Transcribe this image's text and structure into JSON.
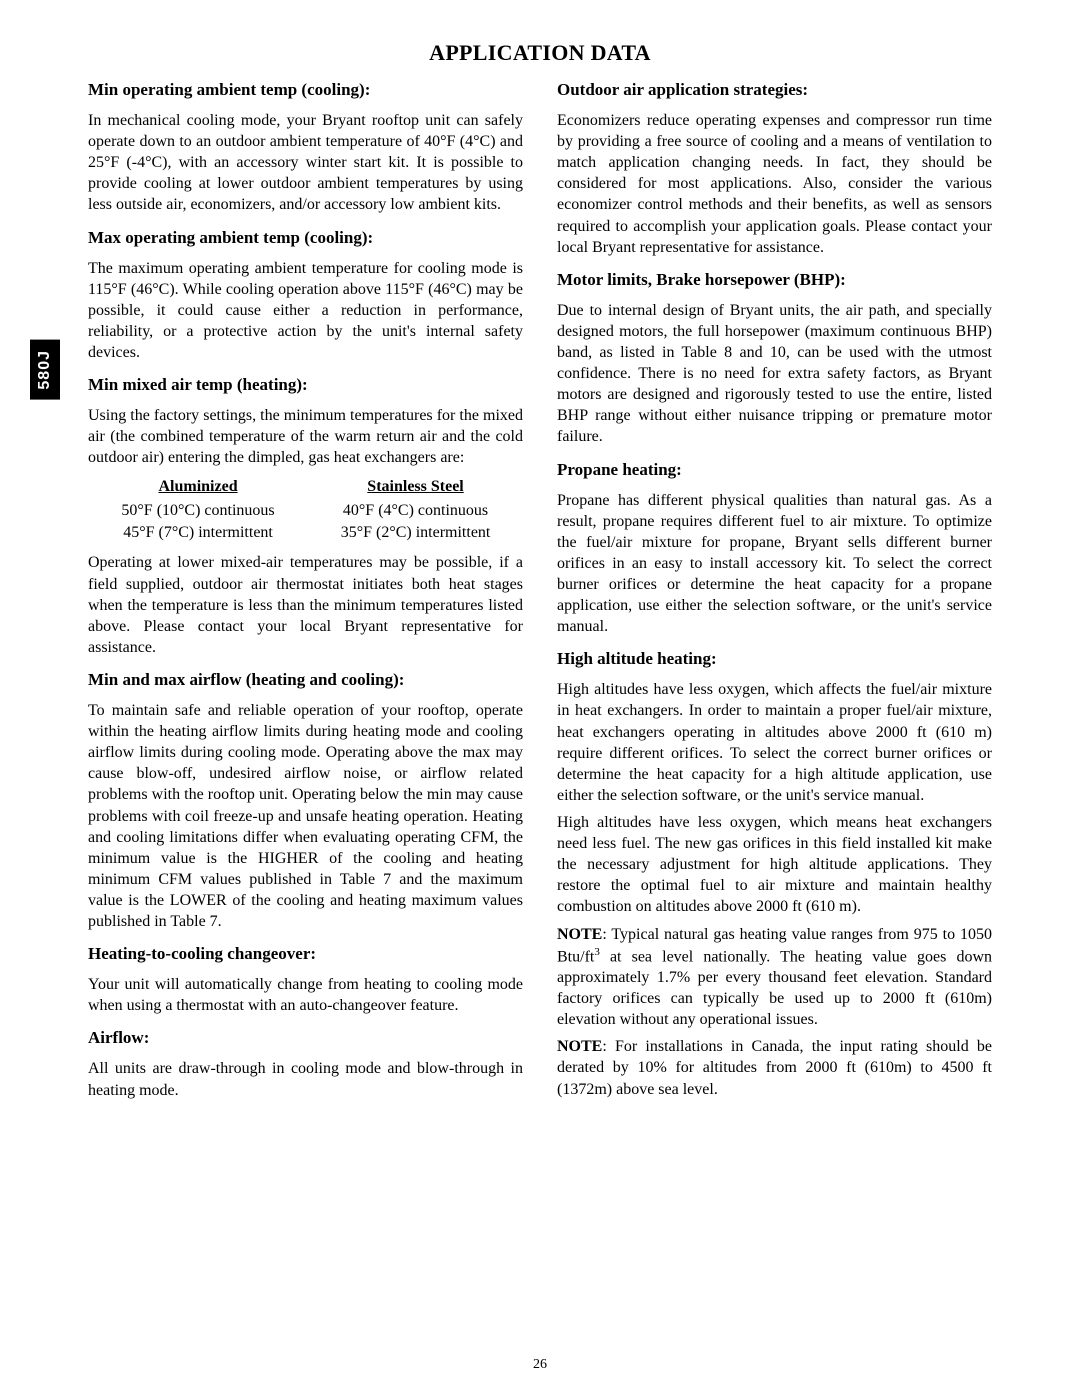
{
  "page": {
    "title": "APPLICATION DATA",
    "side_tab": "580J",
    "page_number": "26"
  },
  "left": {
    "s1": {
      "h": "Min operating ambient temp (cooling):",
      "p1": "In mechanical cooling mode, your Bryant rooftop unit can safely operate down to an outdoor ambient temperature of 40°F (4°C) and 25°F (-4°C), with an accessory winter start kit. It is possible to provide cooling at lower outdoor ambient temperatures by using less outside air, economizers, and/or accessory low ambient kits."
    },
    "s2": {
      "h": "Max operating ambient temp (cooling):",
      "p1": "The maximum operating ambient temperature for cooling mode is 115°F (46°C). While cooling operation above 115°F (46°C) may be possible, it could cause either a reduction in performance, reliability, or a protective action by the unit's internal safety devices."
    },
    "s3": {
      "h": "Min mixed air temp (heating):",
      "p1": "Using the factory settings, the minimum temperatures for the mixed air (the combined temperature of the warm return air and the cold outdoor air) entering the dimpled, gas heat exchangers are:",
      "table": {
        "col1_h": "Aluminized",
        "col2_h": "Stainless Steel",
        "r1c1": "50°F (10°C) continuous",
        "r1c2": "40°F (4°C) continuous",
        "r2c1": "45°F (7°C) intermittent",
        "r2c2": "35°F (2°C) intermittent"
      },
      "p2": "Operating at lower mixed-air temperatures may be possible, if a field supplied, outdoor air thermostat initiates both heat stages when the temperature is less than the minimum temperatures listed above. Please contact your local Bryant representative for assistance."
    },
    "s4": {
      "h": "Min and max airflow (heating and cooling):",
      "p1": "To maintain safe and reliable operation of your rooftop, operate within the heating airflow limits during heating mode and cooling airflow limits during cooling mode. Operating above the max may cause blow-off, undesired airflow noise, or airflow related problems with the rooftop unit. Operating below the min may cause problems with coil freeze-up and unsafe heating operation. Heating and cooling limitations differ when evaluating operating CFM, the minimum value is the HIGHER of the cooling and heating minimum CFM values published in Table 7 and the maximum value is the LOWER of the cooling and heating maximum values published in Table 7."
    },
    "s5": {
      "h": "Heating-to-cooling changeover:",
      "p1": "Your unit will automatically change from heating to cooling mode when using a thermostat with an auto-changeover feature."
    },
    "s6": {
      "h": "Airflow:",
      "p1": "All units are draw-through in cooling mode and blow-through in heating mode."
    }
  },
  "right": {
    "s1": {
      "h": "Outdoor air application strategies:",
      "p1": "Economizers reduce operating expenses and compressor run time by providing a free source of cooling and a means of ventilation to match application changing needs. In fact, they should be considered for most applications. Also, consider the various economizer control methods and their benefits, as well as sensors required to accomplish your application goals. Please contact your local Bryant representative for assistance."
    },
    "s2": {
      "h": "Motor limits, Brake horsepower (BHP):",
      "p1": "Due to internal design of Bryant units, the air path, and specially designed motors, the full horsepower (maximum continuous BHP) band, as listed in Table 8 and 10, can be used with the utmost confidence. There is no need for extra safety factors, as Bryant motors are designed and rigorously tested to use the entire, listed BHP range without either nuisance tripping or premature motor failure."
    },
    "s3": {
      "h": "Propane heating:",
      "p1": "Propane has different physical qualities than natural gas. As a result, propane requires different fuel to air mixture. To optimize the fuel/air mixture for propane, Bryant sells different burner orifices in an easy to install accessory kit. To select the correct burner orifices or determine the heat capacity for a propane application, use either the selection software, or the unit's service manual."
    },
    "s4": {
      "h": "High altitude heating:",
      "p1": "High altitudes have less oxygen, which affects the fuel/air mixture in heat exchangers. In order to maintain a proper fuel/air mixture, heat exchangers operating in altitudes above 2000 ft (610 m) require different orifices. To select the correct burner orifices or determine the heat capacity for a high altitude application, use either the selection software, or the unit's service manual.",
      "p2": "High altitudes have less oxygen, which means heat exchangers need less fuel. The new gas orifices in this field installed kit make the necessary adjustment for high altitude applications. They restore the optimal fuel to air mixture and maintain healthy combustion on altitudes above 2000 ft (610 m).",
      "note1_label": "NOTE",
      "note1_text": ":   Typical natural gas heating value ranges from 975 to 1050 Btu/ft",
      "note1_text2": " at sea level nationally. The heating value goes down approximately 1.7% per every thousand feet elevation. Standard factory orifices can typically be used up to 2000 ft (610m) elevation without any operational issues.",
      "note2_label": "NOTE",
      "note2_text": ":   For installations in Canada, the input rating should be derated by 10% for altitudes from 2000 ft (610m) to 4500 ft (1372m) above sea level."
    }
  }
}
